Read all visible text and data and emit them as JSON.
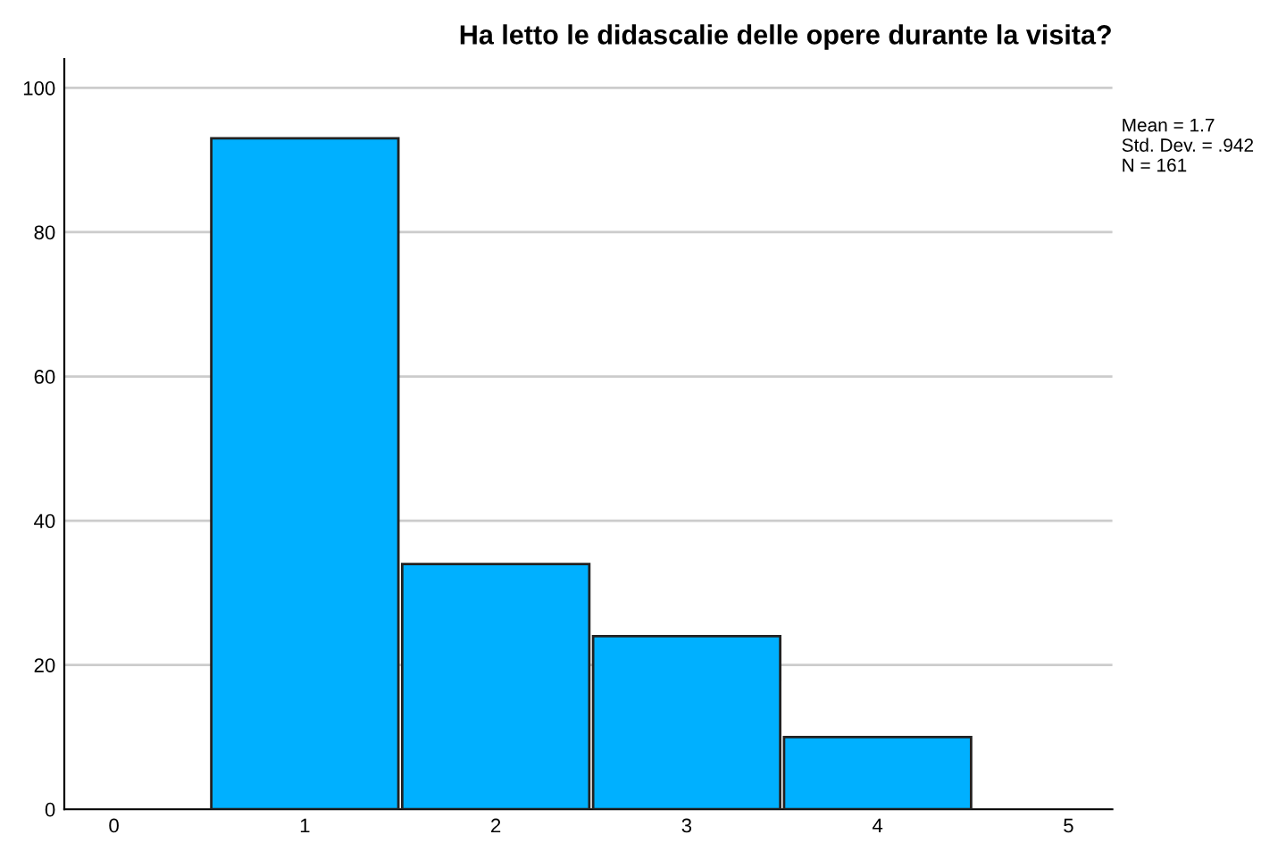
{
  "chart_data": {
    "type": "histogram",
    "title": "Ha letto le didascalie delle opere durante la visita?",
    "bins": [
      0.5,
      1.5,
      2.5,
      3.5,
      4.5
    ],
    "values": [
      93,
      34,
      24,
      10
    ],
    "color": "#00b0ff",
    "xlim": [
      -0.26,
      5.23
    ],
    "xticks": [
      0,
      1,
      2,
      3,
      4,
      5
    ],
    "ylim": [
      0,
      104
    ],
    "yticks": [
      0,
      20,
      40,
      60,
      80,
      100
    ],
    "grid": "y",
    "annotations": [
      "Mean = 1.7\nStd. Dev. = .942\nN = 161"
    ]
  }
}
